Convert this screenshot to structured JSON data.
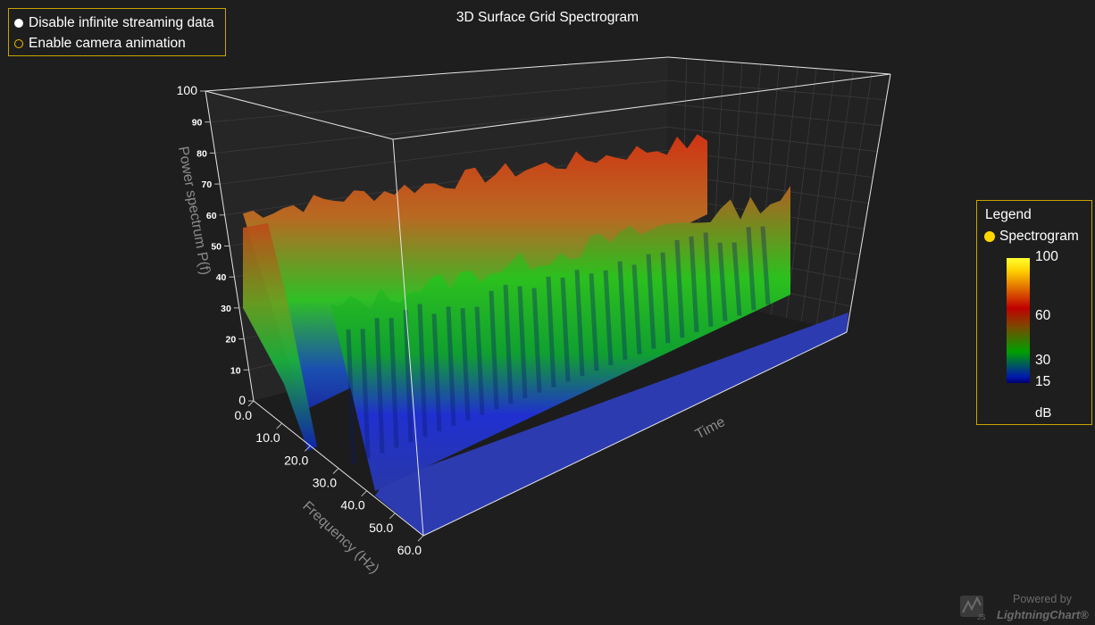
{
  "controls": {
    "streaming_label": "Disable infinite streaming data",
    "camera_label": "Enable camera animation"
  },
  "legend": {
    "title": "Legend",
    "entry": "Spectrogram",
    "entry_color": "#ffd700",
    "ticks": [
      "100",
      "60",
      "30",
      "15"
    ],
    "unit": "dB"
  },
  "watermark": {
    "powered": "Powered by",
    "brand": "LightningChart®"
  },
  "chart_data": {
    "type": "surface3d",
    "title": "3D Surface Grid Spectrogram",
    "x_label": "Time",
    "y_label": "Power spectrum P(f)",
    "z_label": "Frequency (Hz)",
    "ylim": [
      0,
      100
    ],
    "zlim": [
      0,
      60
    ],
    "y_ticks": [
      "100",
      "90",
      "80",
      "70",
      "60",
      "50",
      "40",
      "30",
      "20",
      "10",
      "0"
    ],
    "z_ticks": [
      "0.0",
      "10.0",
      "20.0",
      "30.0",
      "40.0",
      "50.0",
      "60.0"
    ],
    "color_scale": [
      {
        "value": 15,
        "color": "#0019b0"
      },
      {
        "value": 30,
        "color": "#00a000"
      },
      {
        "value": 45,
        "color": "#7a4a00"
      },
      {
        "value": 60,
        "color": "#c00000"
      },
      {
        "value": 100,
        "color": "#ffff30"
      }
    ]
  }
}
